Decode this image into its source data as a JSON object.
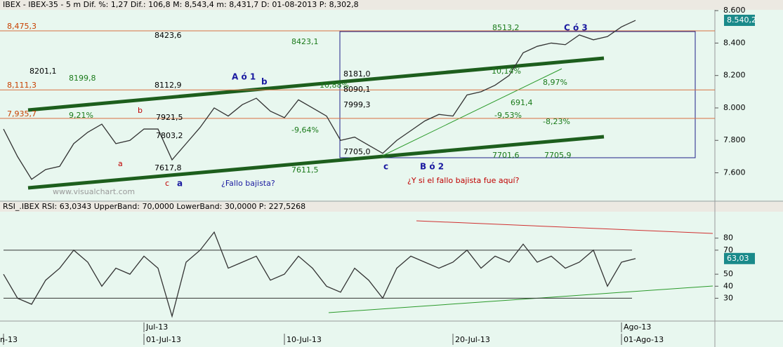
{
  "header": {
    "price": "IBEX - IBEX-35 -  5 m Dif. %: 1,27 Dif.: 106,8 M: 8,543,4 m: 8,431,7 D: 01-08-2013 P: 8,302,8",
    "rsi": "RSI_.IBEX RSI: 63,0343 UpperBand: 70,0000 LowerBand: 30,0000 P: 227,5268"
  },
  "watermark": "www.visualchart.com",
  "period_labels": [
    "Jul-13",
    "Ago-13"
  ],
  "chart_data": [
    {
      "type": "line",
      "color": "#333333",
      "values": [
        7870,
        7700,
        7560,
        7620,
        7640,
        7780,
        7850,
        7900,
        7780,
        7800,
        7870,
        7870,
        7680,
        7780,
        7880,
        8000,
        7950,
        8020,
        8060,
        7980,
        7940,
        8050,
        8000,
        7950,
        7800,
        7820,
        7770,
        7720,
        7800,
        7860,
        7920,
        7960,
        7950,
        8080,
        8100,
        8140,
        8200,
        8340,
        8380,
        8400,
        8390,
        8450,
        8420,
        8440,
        8500,
        8540
      ],
      "ylim": [
        7425,
        8605
      ],
      "yticks": [
        {
          "value": 7600,
          "label": "7.600"
        },
        {
          "value": 7800,
          "label": "7.800"
        },
        {
          "value": 8000,
          "label": "8.000"
        },
        {
          "value": 8200,
          "label": "8.200"
        },
        {
          "value": 8400,
          "label": "8.400"
        },
        {
          "value": 8600,
          "label": "8.600"
        }
      ],
      "last_value": 8540.2,
      "last_label": "8.540,2",
      "levels": [
        {
          "value": 8475.3,
          "label": "8,475,3"
        },
        {
          "value": 8111.3,
          "label": "8,111,3"
        },
        {
          "value": 7935.7,
          "label": "7,935,7"
        }
      ],
      "annotations": [
        {
          "text": "A ó 1",
          "color": "#1a1aa0"
        },
        {
          "text": "b",
          "color": "#1a1aa0"
        },
        {
          "text": "B ó 2",
          "color": "#1a1aa0"
        },
        {
          "text": "c",
          "color": "#1a1aa0"
        },
        {
          "text": "C ó 3",
          "color": "#1a1aa0"
        },
        {
          "text": "a",
          "color": "#1a1aa0"
        },
        {
          "text": "¿Fallo bajista?",
          "color": "#1a1aa0"
        },
        {
          "text": "¿Y si el fallo bajista fue aquí?",
          "color": "#c00000"
        },
        {
          "text": "c",
          "color": "#c00000"
        },
        {
          "text": "b",
          "color": "#c00000"
        },
        {
          "text": "a",
          "color": "#c00000"
        },
        {
          "text": "8423,6",
          "color": "#000000"
        },
        {
          "text": "8112,9",
          "color": "#000000"
        },
        {
          "text": "8201,1",
          "color": "#000000"
        },
        {
          "text": "8181,0",
          "color": "#000000"
        },
        {
          "text": "8090,1",
          "color": "#000000"
        },
        {
          "text": "7999,3",
          "color": "#000000"
        },
        {
          "text": "7705,0",
          "color": "#000000"
        },
        {
          "text": "7921,5",
          "color": "#000000"
        },
        {
          "text": "7803,2",
          "color": "#000000"
        },
        {
          "text": "7617,8",
          "color": "#000000"
        },
        {
          "text": "8513,2",
          "color": "#1a7a1a"
        },
        {
          "text": "7701,6",
          "color": "#1a7a1a"
        },
        {
          "text": "7705,9",
          "color": "#1a7a1a"
        },
        {
          "text": "7611,5",
          "color": "#1a7a1a"
        },
        {
          "text": "8423,1",
          "color": "#1a7a1a"
        },
        {
          "text": "8199,8",
          "color": "#1a7a1a"
        },
        {
          "text": "10,88%",
          "color": "#1a7a1a"
        },
        {
          "text": "-9,64%",
          "color": "#1a7a1a"
        },
        {
          "text": "9,21%",
          "color": "#1a7a1a"
        },
        {
          "text": "-9,53%",
          "color": "#1a7a1a"
        },
        {
          "text": "691,4",
          "color": "#1a7a1a"
        },
        {
          "text": "8,97%",
          "color": "#1a7a1a"
        },
        {
          "text": "-8,23%",
          "color": "#1a7a1a"
        },
        {
          "text": "10,14%",
          "color": "#1a7a1a"
        }
      ]
    },
    {
      "type": "line",
      "color": "#333333",
      "categories": [
        "n-13",
        null,
        null,
        null,
        null,
        null,
        null,
        null,
        null,
        null,
        "01-Jul-13",
        null,
        null,
        null,
        null,
        null,
        null,
        null,
        null,
        null,
        "10-Jul-13",
        null,
        null,
        null,
        null,
        null,
        null,
        null,
        null,
        null,
        null,
        null,
        "20-Jul-13",
        null,
        null,
        null,
        null,
        null,
        null,
        null,
        null,
        null,
        null,
        null,
        "01-Ago-13",
        null
      ],
      "values": [
        50,
        30,
        25,
        45,
        55,
        70,
        60,
        40,
        55,
        50,
        65,
        55,
        15,
        60,
        70,
        85,
        55,
        60,
        65,
        45,
        50,
        65,
        55,
        40,
        35,
        55,
        45,
        30,
        55,
        65,
        60,
        55,
        60,
        70,
        55,
        65,
        60,
        75,
        60,
        65,
        55,
        60,
        70,
        40,
        60,
        63
      ],
      "ylim": [
        11,
        102
      ],
      "yticks": [
        30,
        40,
        50,
        70,
        80
      ],
      "upper_band": 70,
      "lower_band": 30,
      "last_value": 63.03,
      "last_label": "63,03"
    }
  ]
}
